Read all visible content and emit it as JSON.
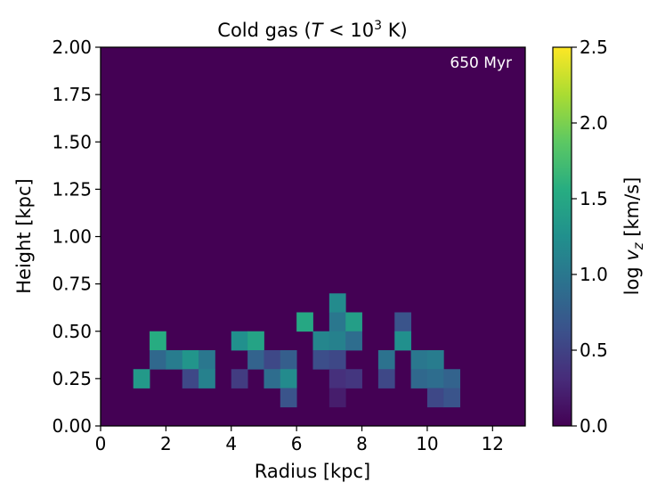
{
  "chart_data": {
    "type": "heatmap",
    "title_prefix": "Cold gas (",
    "title_math_T": "T",
    "title_math_rel": " < 10",
    "title_math_exp": "3",
    "title_suffix": " K)",
    "xlabel": "Radius [kpc]",
    "ylabel": "Height [kpc]",
    "annotation": "650 Myr",
    "xlim": [
      0,
      13
    ],
    "ylim": [
      0,
      2.0
    ],
    "xticks": [
      "0",
      "2",
      "4",
      "6",
      "8",
      "10",
      "12"
    ],
    "yticks": [
      "0.00",
      "0.25",
      "0.50",
      "0.75",
      "1.00",
      "1.25",
      "1.50",
      "1.75",
      "2.00"
    ],
    "bin_width_x": 0.5,
    "bin_width_y": 0.1,
    "background_value": 0.0,
    "colorbar": {
      "label_prefix": "log ",
      "label_var": "v",
      "label_sub": "z",
      "label_suffix": " [km/s]",
      "range": [
        0.0,
        2.5
      ],
      "ticks": [
        "0.0",
        "0.5",
        "1.0",
        "1.5",
        "2.0",
        "2.5"
      ],
      "colormap": "viridis"
    },
    "cells": [
      {
        "x": 1.0,
        "y": 0.2,
        "v": 1.35
      },
      {
        "x": 1.5,
        "y": 0.4,
        "v": 1.55
      },
      {
        "x": 1.5,
        "y": 0.3,
        "v": 0.85
      },
      {
        "x": 2.0,
        "y": 0.3,
        "v": 1.05
      },
      {
        "x": 2.5,
        "y": 0.3,
        "v": 1.3
      },
      {
        "x": 2.5,
        "y": 0.2,
        "v": 0.55
      },
      {
        "x": 3.0,
        "y": 0.3,
        "v": 1.0
      },
      {
        "x": 3.0,
        "y": 0.2,
        "v": 1.1
      },
      {
        "x": 4.0,
        "y": 0.4,
        "v": 1.25
      },
      {
        "x": 4.0,
        "y": 0.2,
        "v": 0.45
      },
      {
        "x": 4.5,
        "y": 0.4,
        "v": 1.45
      },
      {
        "x": 4.5,
        "y": 0.3,
        "v": 0.8
      },
      {
        "x": 5.0,
        "y": 0.3,
        "v": 0.55
      },
      {
        "x": 5.0,
        "y": 0.2,
        "v": 0.9
      },
      {
        "x": 5.5,
        "y": 0.3,
        "v": 0.75
      },
      {
        "x": 5.5,
        "y": 0.2,
        "v": 1.2
      },
      {
        "x": 5.5,
        "y": 0.1,
        "v": 0.65
      },
      {
        "x": 6.0,
        "y": 0.5,
        "v": 1.5
      },
      {
        "x": 6.5,
        "y": 0.4,
        "v": 1.15
      },
      {
        "x": 6.5,
        "y": 0.3,
        "v": 0.6
      },
      {
        "x": 7.0,
        "y": 0.6,
        "v": 1.2
      },
      {
        "x": 7.0,
        "y": 0.5,
        "v": 1.0
      },
      {
        "x": 7.0,
        "y": 0.4,
        "v": 1.1
      },
      {
        "x": 7.0,
        "y": 0.3,
        "v": 0.55
      },
      {
        "x": 7.0,
        "y": 0.2,
        "v": 0.35
      },
      {
        "x": 7.0,
        "y": 0.1,
        "v": 0.2
      },
      {
        "x": 7.5,
        "y": 0.5,
        "v": 1.4
      },
      {
        "x": 7.5,
        "y": 0.4,
        "v": 0.9
      },
      {
        "x": 7.5,
        "y": 0.2,
        "v": 0.4
      },
      {
        "x": 8.5,
        "y": 0.3,
        "v": 0.95
      },
      {
        "x": 8.5,
        "y": 0.2,
        "v": 0.55
      },
      {
        "x": 9.0,
        "y": 0.5,
        "v": 0.65
      },
      {
        "x": 9.0,
        "y": 0.4,
        "v": 1.25
      },
      {
        "x": 9.5,
        "y": 0.3,
        "v": 1.0
      },
      {
        "x": 9.5,
        "y": 0.2,
        "v": 0.85
      },
      {
        "x": 10.0,
        "y": 0.3,
        "v": 1.05
      },
      {
        "x": 10.0,
        "y": 0.2,
        "v": 0.9
      },
      {
        "x": 10.0,
        "y": 0.1,
        "v": 0.55
      },
      {
        "x": 10.5,
        "y": 0.2,
        "v": 0.8
      },
      {
        "x": 10.5,
        "y": 0.1,
        "v": 0.65
      }
    ]
  }
}
